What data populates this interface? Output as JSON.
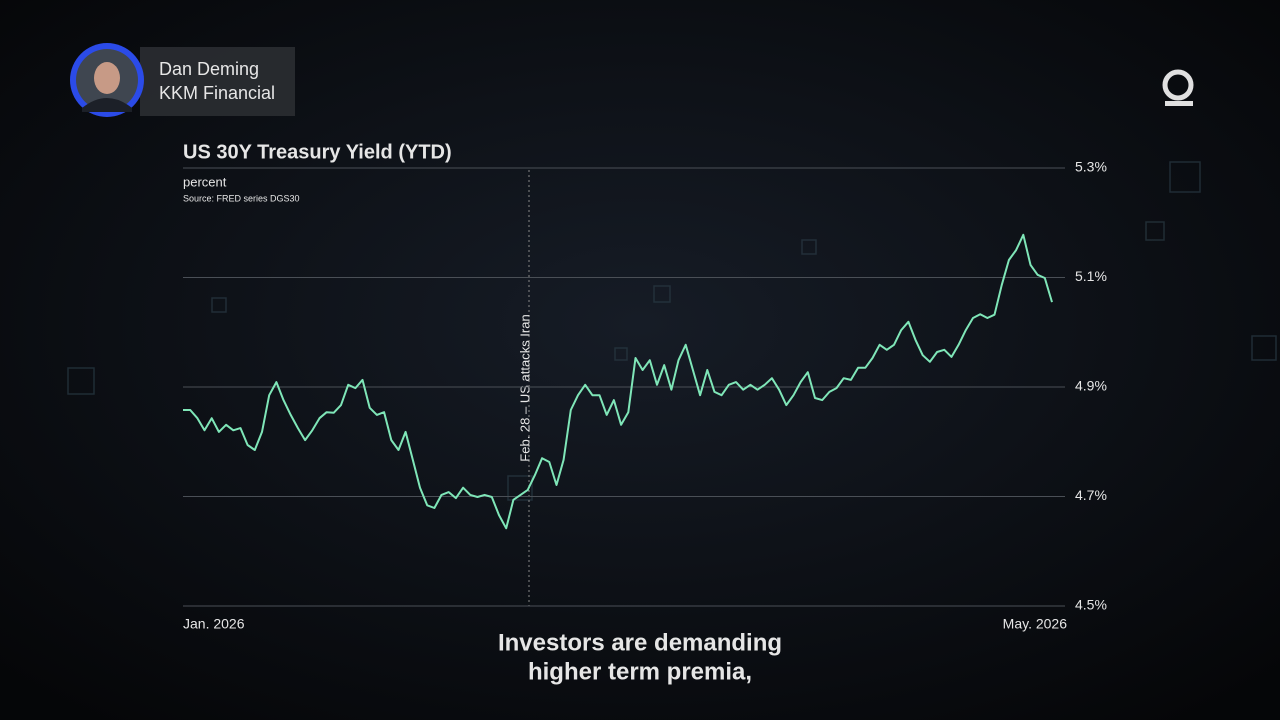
{
  "lower_third": {
    "name": "Dan Deming",
    "company": "KKM Financial"
  },
  "chart_data": {
    "type": "line",
    "title": "US 30Y Treasury Yield (YTD)",
    "subtitle": "percent",
    "source": "Source: FRED series DGS30",
    "annotation": "Feb. 28 – US attacks Iran",
    "categories": [
      "Jan. 2026",
      null,
      null,
      null,
      null,
      null,
      null,
      null,
      null,
      null,
      null,
      null,
      null,
      null,
      null,
      null,
      null,
      null,
      null,
      null,
      null,
      null,
      null,
      null,
      null,
      null,
      null,
      null,
      null,
      null,
      null,
      null,
      null,
      null,
      null,
      null,
      null,
      null,
      null,
      null,
      null,
      null,
      null,
      null,
      null,
      null,
      null,
      null,
      null,
      null,
      null,
      null,
      null,
      null,
      null,
      null,
      null,
      null,
      null,
      null,
      null,
      null,
      null,
      null,
      null,
      null,
      null,
      null,
      null,
      null,
      null,
      null,
      null,
      null,
      null,
      null,
      null,
      null,
      null,
      null,
      null,
      null,
      null,
      null,
      null,
      null,
      null,
      null,
      null,
      null,
      null,
      null,
      null,
      null,
      null,
      null,
      null,
      null,
      null,
      null,
      null,
      null,
      null,
      null,
      null,
      null,
      null,
      null,
      null,
      null,
      null,
      null,
      null,
      null,
      null,
      null,
      null,
      null,
      null,
      null,
      null,
      "May. 2026"
    ],
    "values": [
      4.858,
      4.858,
      4.843,
      4.821,
      4.843,
      4.818,
      4.831,
      4.821,
      4.825,
      4.794,
      4.785,
      4.818,
      4.885,
      4.909,
      4.876,
      4.849,
      4.825,
      4.803,
      4.821,
      4.843,
      4.854,
      4.853,
      4.867,
      4.904,
      4.898,
      4.913,
      4.862,
      4.849,
      4.854,
      4.803,
      4.785,
      4.818,
      4.767,
      4.716,
      4.684,
      4.679,
      4.703,
      4.708,
      4.697,
      4.716,
      4.703,
      4.699,
      4.703,
      4.699,
      4.666,
      4.642,
      4.694,
      4.703,
      4.712,
      4.739,
      4.77,
      4.763,
      4.721,
      4.767,
      4.858,
      4.885,
      4.904,
      4.885,
      4.885,
      4.849,
      4.876,
      4.831,
      4.854,
      4.953,
      4.931,
      4.949,
      4.904,
      4.94,
      4.895,
      4.949,
      4.977,
      4.931,
      4.885,
      4.931,
      4.891,
      4.885,
      4.904,
      4.909,
      4.895,
      4.904,
      4.895,
      4.904,
      4.916,
      4.895,
      4.867,
      4.885,
      4.909,
      4.927,
      4.88,
      4.876,
      4.891,
      4.898,
      4.916,
      4.913,
      4.935,
      4.935,
      4.953,
      4.977,
      4.968,
      4.977,
      5.004,
      5.019,
      4.986,
      4.958,
      4.946,
      4.964,
      4.968,
      4.955,
      4.977,
      5.004,
      5.026,
      5.033,
      5.026,
      5.032,
      5.086,
      5.132,
      5.15,
      5.178,
      5.123,
      5.105,
      5.099,
      5.055
    ],
    "color": "#7fe6b8",
    "ylim": [
      4.5,
      5.3
    ],
    "yticks": [
      {
        "value": 4.5,
        "label": "4.5%"
      },
      {
        "value": 4.7,
        "label": "4.7%"
      },
      {
        "value": 4.9,
        "label": "4.9%"
      },
      {
        "value": 5.1,
        "label": "5.1%"
      },
      {
        "value": 5.3,
        "label": "5.3%"
      }
    ],
    "grid": true
  },
  "caption": [
    "Investors are demanding",
    "higher term premia,"
  ]
}
